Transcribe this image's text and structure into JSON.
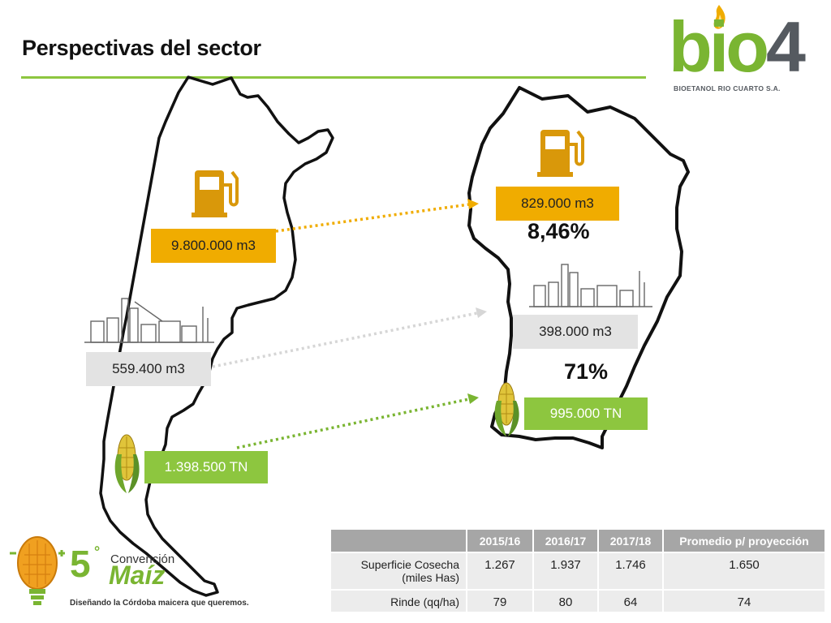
{
  "page": {
    "title": "Perspectivas del sector"
  },
  "logo": {
    "word_green": "bio",
    "word_dark": "4",
    "subtitle": "BIOETANOL RIO CUARTO S.A."
  },
  "national": {
    "fuel": "9.800.000 m3",
    "ethanol": "559.400 m3",
    "corn": "1.398.500 TN"
  },
  "cordoba": {
    "fuel": "829.000 m3",
    "fuel_share": "8,46%",
    "ethanol": "398.000 m3",
    "ethanol_share": "71%",
    "corn": "995.000 TN"
  },
  "table": {
    "headers": [
      "",
      "2015/16",
      "2016/17",
      "2017/18",
      "Promedio p/ proyección"
    ],
    "rows": [
      {
        "label": "Superficie Cosecha (miles Has)",
        "values": [
          "1.267",
          "1.937",
          "1.746",
          "1.650"
        ]
      },
      {
        "label": "Rinde (qq/ha)",
        "values": [
          "79",
          "80",
          "64",
          "74"
        ]
      }
    ]
  },
  "convention": {
    "number": "5",
    "degree": "°",
    "word": "Convención",
    "name": "Maíz",
    "tagline": "Diseñando la Córdoba maicera que queremos."
  },
  "icons": {
    "fuel": "fuel-pump-icon",
    "factory": "factory-icon",
    "corn": "corn-icon",
    "arrow": "dotted-arrow"
  },
  "colors": {
    "accent_green": "#8dc63f",
    "fuel_orange": "#f0ac00",
    "industry_gray": "#e3e3e3",
    "table_header": "#a6a6a6"
  }
}
